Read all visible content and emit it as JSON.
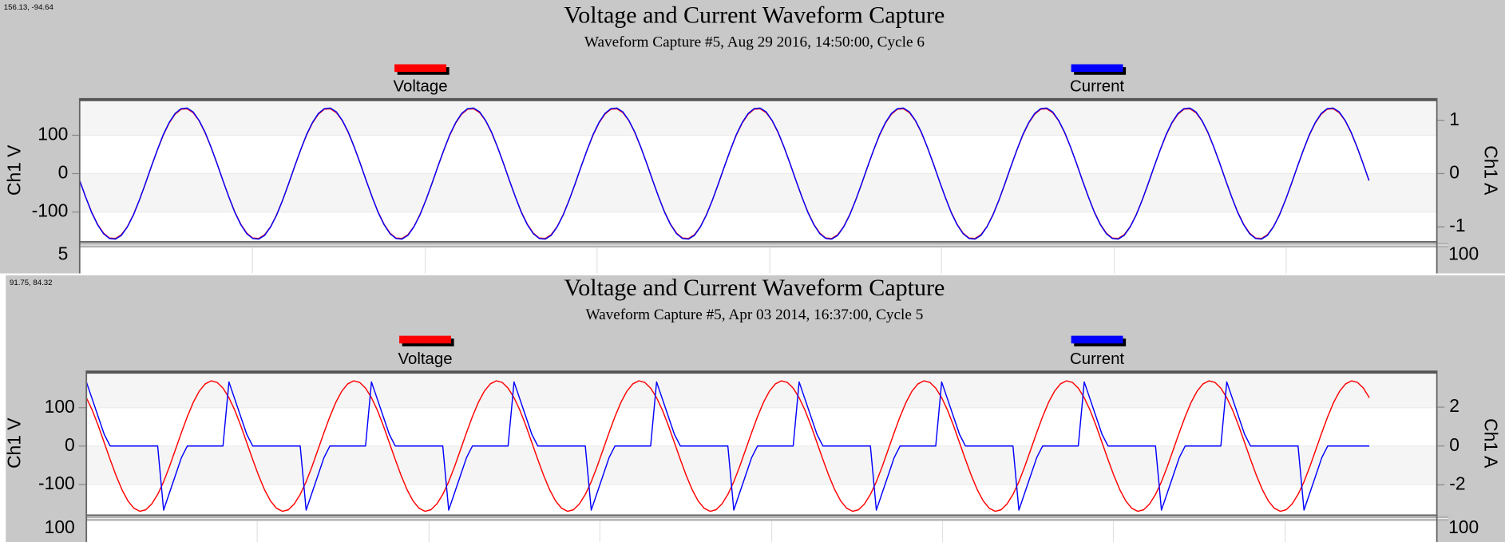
{
  "chart_data": [
    {
      "type": "line",
      "title": "Voltage and Current Waveform Capture",
      "subtitle": "Waveform Capture #5, Aug 29 2016, 14:50:00,  Cycle 6",
      "cursor_readout": "156.13, -94.64",
      "ylabel": "Ch1 V",
      "y2label": "Ch1 A",
      "lower_left_label": "5",
      "lower_right_label": "100",
      "ylim": [
        -177.5,
        187.5
      ],
      "yticks": [
        100,
        0,
        -100
      ],
      "y2lim": [
        -1.28,
        1.35
      ],
      "y2ticks": [
        1,
        0,
        -1
      ],
      "grid": true,
      "series": [
        {
          "name": "Voltage",
          "color": "#ff0000",
          "values": [
            -18,
            -61,
            -100,
            -132,
            -155,
            -168,
            -169,
            -159,
            -138,
            -107,
            -69,
            -27,
            18,
            61,
            100,
            132,
            155,
            168,
            169,
            159,
            138,
            107,
            69,
            27,
            -18,
            -61,
            -100,
            -132,
            -155,
            -168,
            -169,
            -159,
            -138,
            -107,
            -69,
            -27,
            18,
            61,
            100,
            132,
            155,
            168,
            169,
            159,
            138,
            107,
            69,
            27,
            -18,
            -61,
            -100,
            -132,
            -155,
            -168,
            -169,
            -159,
            -138,
            -107,
            -69,
            -27,
            18,
            61,
            100,
            132,
            155,
            168,
            169,
            159,
            138,
            107,
            69,
            27,
            -18,
            -61,
            -100,
            -132,
            -155,
            -168,
            -169,
            -159,
            -138,
            -107,
            -69,
            -27,
            18,
            61,
            100,
            132,
            155,
            168,
            169,
            159,
            138,
            107,
            69,
            27,
            -18,
            -61,
            -100,
            -132,
            -155,
            -168,
            -169,
            -159,
            -138,
            -107,
            -69,
            -27,
            18,
            61,
            100,
            132,
            155,
            168,
            169,
            159,
            138,
            107,
            69,
            27,
            -18,
            -61,
            -100,
            -132,
            -155,
            -168,
            -169,
            -159,
            -138,
            -107,
            -69,
            -27,
            18,
            61,
            100,
            132,
            155,
            168,
            169,
            159,
            138,
            107,
            69,
            27,
            -18,
            -61,
            -100,
            -132,
            -155,
            -168,
            -169,
            -159,
            -138,
            -107,
            -69,
            -27,
            18,
            61,
            100,
            132,
            155,
            168,
            169,
            159,
            138,
            107,
            69,
            27,
            -18,
            -61,
            -100,
            -132,
            -155,
            -168,
            -169,
            -159,
            -138,
            -107,
            -69,
            -27,
            18,
            61,
            100,
            132,
            155,
            168,
            169,
            159,
            138,
            107,
            69,
            27,
            -18,
            -61,
            -100,
            -132,
            -155,
            -168,
            -169,
            -159,
            -138,
            -107,
            -69,
            -27,
            18,
            61,
            100,
            132,
            155,
            168,
            169,
            159,
            138,
            107,
            69,
            27,
            -18
          ]
        },
        {
          "name": "Current",
          "color": "#0000ff",
          "axis": "y2",
          "values": [
            -0.13,
            -0.44,
            -0.73,
            -0.96,
            -1.13,
            -1.22,
            -1.23,
            -1.16,
            -1,
            -0.78,
            -0.5,
            -0.19,
            0.13,
            0.44,
            0.73,
            0.96,
            1.13,
            1.22,
            1.23,
            1.16,
            1,
            0.78,
            0.5,
            0.19,
            -0.13,
            -0.44,
            -0.73,
            -0.96,
            -1.13,
            -1.22,
            -1.23,
            -1.16,
            -1,
            -0.78,
            -0.5,
            -0.19,
            0.13,
            0.44,
            0.73,
            0.96,
            1.13,
            1.22,
            1.23,
            1.16,
            1,
            0.78,
            0.5,
            0.19,
            -0.13,
            -0.44,
            -0.73,
            -0.96,
            -1.13,
            -1.22,
            -1.23,
            -1.16,
            -1,
            -0.78,
            -0.5,
            -0.19,
            0.13,
            0.44,
            0.73,
            0.96,
            1.13,
            1.22,
            1.23,
            1.16,
            1,
            0.78,
            0.5,
            0.19,
            -0.13,
            -0.44,
            -0.73,
            -0.96,
            -1.13,
            -1.22,
            -1.23,
            -1.16,
            -1,
            -0.78,
            -0.5,
            -0.19,
            0.13,
            0.44,
            0.73,
            0.96,
            1.13,
            1.22,
            1.23,
            1.16,
            1,
            0.78,
            0.5,
            0.19,
            -0.13,
            -0.44,
            -0.73,
            -0.96,
            -1.13,
            -1.22,
            -1.23,
            -1.16,
            -1,
            -0.78,
            -0.5,
            -0.19,
            0.13,
            0.44,
            0.73,
            0.96,
            1.13,
            1.22,
            1.23,
            1.16,
            1,
            0.78,
            0.5,
            0.19,
            -0.13,
            -0.44,
            -0.73,
            -0.96,
            -1.13,
            -1.22,
            -1.23,
            -1.16,
            -1,
            -0.78,
            -0.5,
            -0.19,
            0.13,
            0.44,
            0.73,
            0.96,
            1.13,
            1.22,
            1.23,
            1.16,
            1,
            0.78,
            0.5,
            0.19,
            -0.13,
            -0.44,
            -0.73,
            -0.96,
            -1.13,
            -1.22,
            -1.23,
            -1.16,
            -1,
            -0.78,
            -0.5,
            -0.19,
            0.13,
            0.44,
            0.73,
            0.96,
            1.13,
            1.22,
            1.23,
            1.16,
            1,
            0.78,
            0.5,
            0.19,
            -0.13,
            -0.44,
            -0.73,
            -0.96,
            -1.13,
            -1.22,
            -1.23,
            -1.16,
            -1,
            -0.78,
            -0.5,
            -0.19,
            0.13,
            0.44,
            0.73,
            0.96,
            1.13,
            1.22,
            1.23,
            1.16,
            1,
            0.78,
            0.5,
            0.19,
            -0.13,
            -0.44,
            -0.73,
            -0.96,
            -1.13,
            -1.22,
            -1.23,
            -1.16,
            -1,
            -0.78,
            -0.5,
            -0.19,
            0.13,
            0.44,
            0.73,
            0.96,
            1.13,
            1.22,
            1.23,
            1.16,
            1,
            0.78,
            0.5,
            0.19,
            -0.13
          ]
        }
      ]
    },
    {
      "type": "line",
      "title": "Voltage and Current Waveform Capture",
      "subtitle": "Waveform Capture #5, Apr 03 2014, 16:37:00,  Cycle 5",
      "cursor_readout": "91.75, 84.32",
      "ylabel": "Ch1 V",
      "y2label": "Ch1 A",
      "lower_left_label": "100",
      "lower_right_label": "100",
      "ylim": [
        -180,
        187.5
      ],
      "yticks": [
        100,
        0,
        -100
      ],
      "y2lim": [
        -3.56,
        3.7
      ],
      "y2ticks": [
        2,
        0,
        -2
      ],
      "grid": true,
      "series": [
        {
          "name": "Voltage",
          "color": "#ff0000",
          "values": [
            126,
            93,
            53,
            9,
            -35,
            -77,
            -114,
            -143,
            -162,
            -170,
            -166,
            -151,
            -126,
            -93,
            -53,
            -9,
            35,
            77,
            114,
            143,
            162,
            170,
            166,
            151,
            126,
            93,
            53,
            9,
            -35,
            -77,
            -114,
            -143,
            -162,
            -170,
            -166,
            -151,
            -126,
            -93,
            -53,
            -9,
            35,
            77,
            114,
            143,
            162,
            170,
            166,
            151,
            126,
            93,
            53,
            9,
            -35,
            -77,
            -114,
            -143,
            -162,
            -170,
            -166,
            -151,
            -126,
            -93,
            -53,
            -9,
            35,
            77,
            114,
            143,
            162,
            170,
            166,
            151,
            126,
            93,
            53,
            9,
            -35,
            -77,
            -114,
            -143,
            -162,
            -170,
            -166,
            -151,
            -126,
            -93,
            -53,
            -9,
            35,
            77,
            114,
            143,
            162,
            170,
            166,
            151,
            126,
            93,
            53,
            9,
            -35,
            -77,
            -114,
            -143,
            -162,
            -170,
            -166,
            -151,
            -126,
            -93,
            -53,
            -9,
            35,
            77,
            114,
            143,
            162,
            170,
            166,
            151,
            126,
            93,
            53,
            9,
            -35,
            -77,
            -114,
            -143,
            -162,
            -170,
            -166,
            -151,
            -126,
            -93,
            -53,
            -9,
            35,
            77,
            114,
            143,
            162,
            170,
            166,
            151,
            126,
            93,
            53,
            9,
            -35,
            -77,
            -114,
            -143,
            -162,
            -170,
            -166,
            -151,
            -126,
            -93,
            -53,
            -9,
            35,
            77,
            114,
            143,
            162,
            170,
            166,
            151,
            126,
            93,
            53,
            9,
            -35,
            -77,
            -114,
            -143,
            -162,
            -170,
            -166,
            -151,
            -126,
            -93,
            -53,
            -9,
            35,
            77,
            114,
            143,
            162,
            170,
            166,
            151,
            126,
            93,
            53,
            9,
            -35,
            -77,
            -114,
            -143,
            -162,
            -170,
            -166,
            -151,
            -126,
            -93,
            -53,
            -9,
            35,
            77,
            114,
            143,
            162,
            170,
            166,
            151,
            126
          ]
        },
        {
          "name": "Current",
          "color": "#0000ff",
          "axis": "y2",
          "values": [
            3.3,
            2.4,
            1.5,
            0.6,
            0,
            0,
            0,
            0,
            0,
            0,
            0,
            0,
            0,
            -3.3,
            -2.4,
            -1.5,
            -0.6,
            0,
            0,
            0,
            0,
            0,
            0,
            0,
            3.3,
            2.4,
            1.5,
            0.6,
            0,
            0,
            0,
            0,
            0,
            0,
            0,
            0,
            0,
            -3.3,
            -2.4,
            -1.5,
            -0.6,
            0,
            0,
            0,
            0,
            0,
            0,
            0,
            3.3,
            2.4,
            1.5,
            0.6,
            0,
            0,
            0,
            0,
            0,
            0,
            0,
            0,
            0,
            -3.3,
            -2.4,
            -1.5,
            -0.6,
            0,
            0,
            0,
            0,
            0,
            0,
            0,
            3.3,
            2.4,
            1.5,
            0.6,
            0,
            0,
            0,
            0,
            0,
            0,
            0,
            0,
            0,
            -3.3,
            -2.4,
            -1.5,
            -0.6,
            0,
            0,
            0,
            0,
            0,
            0,
            0,
            3.3,
            2.4,
            1.5,
            0.6,
            0,
            0,
            0,
            0,
            0,
            0,
            0,
            0,
            0,
            -3.3,
            -2.4,
            -1.5,
            -0.6,
            0,
            0,
            0,
            0,
            0,
            0,
            0,
            3.3,
            2.4,
            1.5,
            0.6,
            0,
            0,
            0,
            0,
            0,
            0,
            0,
            0,
            0,
            -3.3,
            -2.4,
            -1.5,
            -0.6,
            0,
            0,
            0,
            0,
            0,
            0,
            0,
            3.3,
            2.4,
            1.5,
            0.6,
            0,
            0,
            0,
            0,
            0,
            0,
            0,
            0,
            0,
            -3.3,
            -2.4,
            -1.5,
            -0.6,
            0,
            0,
            0,
            0,
            0,
            0,
            0,
            3.3,
            2.4,
            1.5,
            0.6,
            0,
            0,
            0,
            0,
            0,
            0,
            0,
            0,
            0,
            -3.3,
            -2.4,
            -1.5,
            -0.6,
            0,
            0,
            0,
            0,
            0,
            0,
            0,
            3.3,
            2.4,
            1.5,
            0.6,
            0,
            0,
            0,
            0,
            0,
            0,
            0,
            0,
            0,
            -3.3,
            -2.4,
            -1.5,
            -0.6,
            0,
            0,
            0,
            0,
            0,
            0,
            0,
            0
          ]
        }
      ]
    }
  ]
}
